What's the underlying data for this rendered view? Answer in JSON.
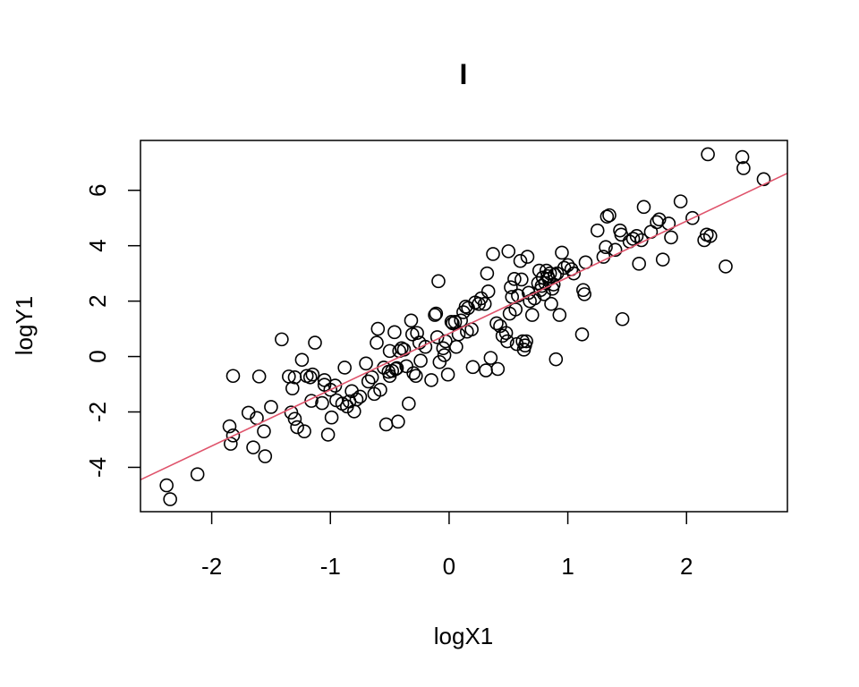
{
  "chart_data": {
    "type": "scatter",
    "title": "I",
    "xlabel": "logX1",
    "ylabel": "logY1",
    "xlim": [
      -2.6,
      2.85
    ],
    "ylim": [
      -5.6,
      7.8
    ],
    "x_ticks": [
      -2,
      -1,
      0,
      1,
      2
    ],
    "y_ticks": [
      -4,
      -2,
      0,
      2,
      4,
      6
    ],
    "grid": false,
    "fit_line": {
      "intercept": 0.83,
      "slope": 2.03,
      "color": "#DF536B"
    },
    "point_color": "#000000",
    "points": [
      [
        -2.38,
        -4.65
      ],
      [
        -2.35,
        -5.15
      ],
      [
        -2.12,
        -4.25
      ],
      [
        -1.85,
        -2.52
      ],
      [
        -1.84,
        -3.15
      ],
      [
        -1.82,
        -2.85
      ],
      [
        -1.82,
        -0.7
      ],
      [
        -1.69,
        -2.03
      ],
      [
        -1.65,
        -3.28
      ],
      [
        -1.62,
        -2.22
      ],
      [
        -1.6,
        -0.72
      ],
      [
        -1.56,
        -2.7
      ],
      [
        -1.55,
        -3.6
      ],
      [
        -1.5,
        -1.82
      ],
      [
        -1.41,
        0.62
      ],
      [
        -1.35,
        -0.72
      ],
      [
        -1.33,
        -2.02
      ],
      [
        -1.32,
        -1.15
      ],
      [
        -1.3,
        -0.75
      ],
      [
        -1.3,
        -2.25
      ],
      [
        -1.28,
        -2.55
      ],
      [
        -1.24,
        -0.12
      ],
      [
        -1.22,
        -2.7
      ],
      [
        -1.2,
        -0.7
      ],
      [
        -1.17,
        -0.75
      ],
      [
        -1.16,
        -1.6
      ],
      [
        -1.15,
        -0.65
      ],
      [
        -1.13,
        0.5
      ],
      [
        -1.07,
        -1.68
      ],
      [
        -1.05,
        -0.85
      ],
      [
        -1.05,
        -1.02
      ],
      [
        -1.02,
        -2.82
      ],
      [
        -1.0,
        -1.2
      ],
      [
        -0.99,
        -2.2
      ],
      [
        -0.96,
        -1.05
      ],
      [
        -0.95,
        -1.58
      ],
      [
        -0.9,
        -1.7
      ],
      [
        -0.88,
        -0.4
      ],
      [
        -0.86,
        -1.8
      ],
      [
        -0.84,
        -1.62
      ],
      [
        -0.82,
        -1.25
      ],
      [
        -0.8,
        -1.98
      ],
      [
        -0.78,
        -1.55
      ],
      [
        -0.75,
        -1.45
      ],
      [
        -0.7,
        -0.25
      ],
      [
        -0.68,
        -0.9
      ],
      [
        -0.65,
        -0.75
      ],
      [
        -0.63,
        -1.35
      ],
      [
        -0.61,
        0.5
      ],
      [
        -0.6,
        1.0
      ],
      [
        -0.58,
        -1.2
      ],
      [
        -0.55,
        -0.4
      ],
      [
        -0.53,
        -2.45
      ],
      [
        -0.51,
        -0.55
      ],
      [
        -0.5,
        -0.7
      ],
      [
        -0.5,
        0.2
      ],
      [
        -0.48,
        -0.52
      ],
      [
        -0.46,
        0.88
      ],
      [
        -0.45,
        -0.45
      ],
      [
        -0.44,
        -0.42
      ],
      [
        -0.43,
        -2.35
      ],
      [
        -0.42,
        0.2
      ],
      [
        -0.4,
        0.3
      ],
      [
        -0.38,
        0.25
      ],
      [
        -0.36,
        -0.35
      ],
      [
        -0.34,
        -1.7
      ],
      [
        -0.32,
        1.3
      ],
      [
        -0.31,
        0.8
      ],
      [
        -0.3,
        -0.6
      ],
      [
        -0.28,
        -0.7
      ],
      [
        -0.27,
        0.85
      ],
      [
        -0.25,
        0.5
      ],
      [
        -0.24,
        -0.15
      ],
      [
        -0.2,
        0.35
      ],
      [
        -0.15,
        -0.85
      ],
      [
        -0.12,
        1.5
      ],
      [
        -0.11,
        1.55
      ],
      [
        -0.1,
        0.7
      ],
      [
        -0.09,
        2.72
      ],
      [
        -0.08,
        -0.2
      ],
      [
        -0.05,
        0.3
      ],
      [
        -0.04,
        0.05
      ],
      [
        -0.03,
        0.55
      ],
      [
        -0.01,
        -0.65
      ],
      [
        0.02,
        1.25
      ],
      [
        0.03,
        1.2
      ],
      [
        0.05,
        1.25
      ],
      [
        0.06,
        0.35
      ],
      [
        0.08,
        0.8
      ],
      [
        0.1,
        1.3
      ],
      [
        0.12,
        1.6
      ],
      [
        0.14,
        1.8
      ],
      [
        0.15,
        0.9
      ],
      [
        0.16,
        1.75
      ],
      [
        0.19,
        0.98
      ],
      [
        0.2,
        -0.38
      ],
      [
        0.22,
        1.95
      ],
      [
        0.25,
        1.9
      ],
      [
        0.27,
        2.1
      ],
      [
        0.3,
        1.9
      ],
      [
        0.31,
        -0.5
      ],
      [
        0.32,
        3.0
      ],
      [
        0.33,
        2.35
      ],
      [
        0.35,
        -0.05
      ],
      [
        0.37,
        3.7
      ],
      [
        0.4,
        1.2
      ],
      [
        0.41,
        -0.45
      ],
      [
        0.43,
        1.1
      ],
      [
        0.45,
        0.75
      ],
      [
        0.48,
        0.85
      ],
      [
        0.49,
        0.55
      ],
      [
        0.5,
        3.8
      ],
      [
        0.51,
        1.55
      ],
      [
        0.52,
        2.5
      ],
      [
        0.53,
        2.15
      ],
      [
        0.55,
        2.8
      ],
      [
        0.56,
        1.7
      ],
      [
        0.57,
        0.45
      ],
      [
        0.58,
        2.2
      ],
      [
        0.6,
        3.45
      ],
      [
        0.61,
        2.78
      ],
      [
        0.62,
        0.55
      ],
      [
        0.63,
        0.25
      ],
      [
        0.64,
        0.4
      ],
      [
        0.65,
        0.55
      ],
      [
        0.66,
        3.6
      ],
      [
        0.67,
        2.3
      ],
      [
        0.68,
        2.0
      ],
      [
        0.7,
        1.5
      ],
      [
        0.72,
        2.1
      ],
      [
        0.75,
        2.65
      ],
      [
        0.76,
        3.1
      ],
      [
        0.77,
        2.4
      ],
      [
        0.78,
        2.55
      ],
      [
        0.79,
        2.85
      ],
      [
        0.8,
        2.25
      ],
      [
        0.81,
        2.65
      ],
      [
        0.82,
        3.1
      ],
      [
        0.83,
        2.9
      ],
      [
        0.84,
        2.8
      ],
      [
        0.85,
        3.0
      ],
      [
        0.86,
        1.9
      ],
      [
        0.87,
        2.45
      ],
      [
        0.88,
        2.6
      ],
      [
        0.89,
        2.95
      ],
      [
        0.9,
        -0.1
      ],
      [
        0.91,
        3.0
      ],
      [
        0.93,
        1.5
      ],
      [
        0.95,
        3.75
      ],
      [
        0.97,
        3.2
      ],
      [
        1.0,
        3.3
      ],
      [
        1.03,
        3.15
      ],
      [
        1.05,
        3.0
      ],
      [
        1.12,
        0.8
      ],
      [
        1.13,
        2.4
      ],
      [
        1.14,
        2.25
      ],
      [
        1.15,
        3.4
      ],
      [
        1.25,
        4.55
      ],
      [
        1.3,
        3.6
      ],
      [
        1.32,
        3.95
      ],
      [
        1.33,
        5.05
      ],
      [
        1.35,
        5.1
      ],
      [
        1.4,
        3.85
      ],
      [
        1.44,
        4.55
      ],
      [
        1.45,
        4.4
      ],
      [
        1.46,
        1.35
      ],
      [
        1.52,
        4.15
      ],
      [
        1.55,
        4.25
      ],
      [
        1.58,
        4.35
      ],
      [
        1.6,
        3.35
      ],
      [
        1.62,
        4.2
      ],
      [
        1.64,
        5.4
      ],
      [
        1.7,
        4.5
      ],
      [
        1.75,
        4.85
      ],
      [
        1.77,
        4.95
      ],
      [
        1.8,
        3.5
      ],
      [
        1.85,
        4.8
      ],
      [
        1.87,
        4.3
      ],
      [
        1.95,
        5.6
      ],
      [
        2.05,
        5.0
      ],
      [
        2.15,
        4.2
      ],
      [
        2.17,
        4.4
      ],
      [
        2.2,
        4.35
      ],
      [
        2.33,
        3.25
      ],
      [
        2.18,
        7.3
      ],
      [
        2.47,
        7.2
      ],
      [
        2.48,
        6.8
      ],
      [
        2.65,
        6.4
      ]
    ]
  }
}
